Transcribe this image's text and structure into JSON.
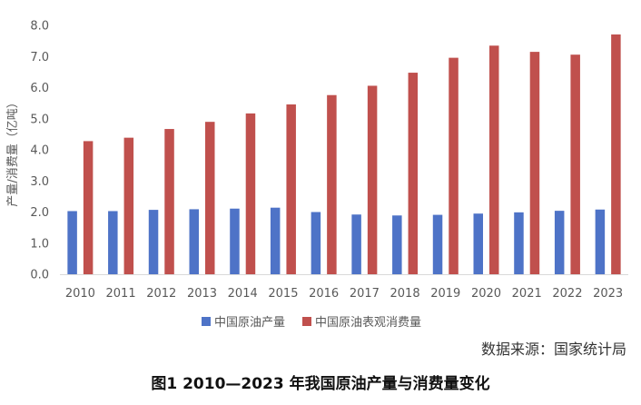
{
  "chart_data": {
    "type": "bar",
    "ylabel": "产量/消费量（亿吨）",
    "ylim": [
      0,
      8
    ],
    "yticks": [
      "0.0",
      "1.0",
      "2.0",
      "3.0",
      "4.0",
      "5.0",
      "6.0",
      "7.0",
      "8.0"
    ],
    "ytick_values": [
      0,
      1,
      2,
      3,
      4,
      5,
      6,
      7,
      8
    ],
    "categories": [
      "2010",
      "2011",
      "2012",
      "2013",
      "2014",
      "2015",
      "2016",
      "2017",
      "2018",
      "2019",
      "2020",
      "2021",
      "2022",
      "2023"
    ],
    "series": [
      {
        "name": "中国原油产量",
        "color": "#4e73c7",
        "values": [
          2.03,
          2.03,
          2.07,
          2.09,
          2.11,
          2.14,
          2.0,
          1.92,
          1.89,
          1.91,
          1.95,
          1.99,
          2.04,
          2.08
        ]
      },
      {
        "name": "中国原油表观消费量",
        "color": "#c0504d",
        "values": [
          4.28,
          4.39,
          4.67,
          4.9,
          5.17,
          5.46,
          5.76,
          6.06,
          6.48,
          6.96,
          7.35,
          7.15,
          7.06,
          7.71
        ]
      }
    ],
    "legend_position": "bottom-center",
    "grid": false
  },
  "source_note": "数据来源：国家统计局",
  "caption": "图1  2010—2023 年我国原油产量与消费量变化"
}
